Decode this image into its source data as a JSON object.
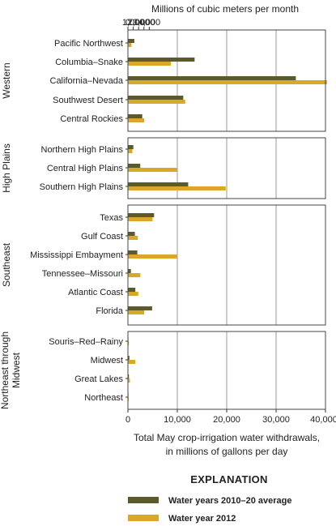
{
  "chart_data": {
    "type": "bar",
    "orientation": "horizontal",
    "top_axis_title": "Millions of cubic meters per month",
    "top_axis_ticks": [
      "0",
      "1,000",
      "2,000",
      "3,000",
      "4,000"
    ],
    "top_axis_values": [
      0,
      1000,
      2000,
      3000,
      4000
    ],
    "bottom_axis_title_line1": "Total May crop-irrigation water withdrawals,",
    "bottom_axis_title_line2": "in millions of gallons per day",
    "bottom_axis_ticks": [
      "0",
      "10,000",
      "20,000",
      "30,000",
      "40,000"
    ],
    "bottom_axis_values": [
      0,
      10000,
      20000,
      30000,
      40000
    ],
    "xlim": [
      0,
      40000
    ],
    "grid": "vertical",
    "legend_title": "EXPLANATION",
    "legend_placement": "bottom",
    "series": [
      {
        "name": "Water years 2010–20 average",
        "color": "#5c5a2c"
      },
      {
        "name": "Water year 2012",
        "color": "#d9a82b"
      }
    ],
    "groups": [
      {
        "label": "Western",
        "categories": [
          {
            "label": "Pacific Northwest",
            "values": [
              1300,
              700
            ]
          },
          {
            "label": "Columbia–Snake",
            "values": [
              13500,
              8700
            ]
          },
          {
            "label": "California–Nevada",
            "values": [
              34000,
              40300
            ]
          },
          {
            "label": "Southwest Desert",
            "values": [
              11200,
              11600
            ]
          },
          {
            "label": "Central Rockies",
            "values": [
              2900,
              3300
            ]
          }
        ]
      },
      {
        "label": "High Plains",
        "categories": [
          {
            "label": "Northern High Plains",
            "values": [
              1100,
              900
            ]
          },
          {
            "label": "Central High Plains",
            "values": [
              2500,
              9900
            ]
          },
          {
            "label": "Southern High Plains",
            "values": [
              12200,
              19800
            ]
          }
        ]
      },
      {
        "label": "Southeast",
        "categories": [
          {
            "label": "Texas",
            "values": [
              5300,
              5000
            ]
          },
          {
            "label": "Gulf Coast",
            "values": [
              1400,
              2000
            ]
          },
          {
            "label": "Mississippi Embayment",
            "values": [
              1900,
              9900
            ]
          },
          {
            "label": "Tennessee–Missouri",
            "values": [
              600,
              2500
            ]
          },
          {
            "label": "Atlantic Coast",
            "values": [
              1500,
              2100
            ]
          },
          {
            "label": "Florida",
            "values": [
              4900,
              3300
            ]
          }
        ]
      },
      {
        "label": "Northeast through Midwest",
        "label_lines": [
          "Northeast through",
          "Midwest"
        ],
        "categories": [
          {
            "label": "Souris–Red–Rainy",
            "values": [
              100,
              200
            ]
          },
          {
            "label": "Midwest",
            "values": [
              300,
              1500
            ]
          },
          {
            "label": "Great Lakes",
            "values": [
              200,
              400
            ]
          },
          {
            "label": "Northeast",
            "values": [
              100,
              150
            ]
          }
        ]
      }
    ]
  }
}
